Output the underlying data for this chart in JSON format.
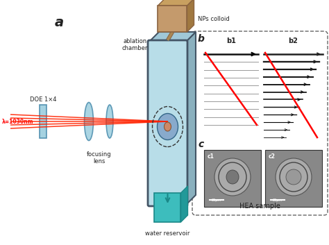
{
  "title_a": "a",
  "title_b": "b",
  "title_c": "c",
  "label_doe": "DOE 1×4",
  "label_lambda": "λ=1030nm",
  "label_focusing": "focusing\nlens",
  "label_ablation": "ablation\nchamber",
  "label_nps": "NPs colloid",
  "label_water": "water reservoir",
  "label_hea": "HEA sample",
  "label_b1": "b1",
  "label_b2": "b2",
  "label_c1": "c1",
  "label_c2": "c2",
  "bg_color": "#ffffff",
  "beam_color": "#ff2200",
  "lens_color": "#99ccdd",
  "lens_edge": "#4488aa",
  "chamber_face_color": "#b8dde8",
  "chamber_edge_color": "#445566",
  "colloid_color": "#c49a6c",
  "colloid_edge": "#8b6340",
  "reservoir_color": "#3dbdbd",
  "reservoir_edge": "#1a8888",
  "text_color": "#222222",
  "panel_edge": "#666666",
  "scale_bar_color": "#ffffff",
  "micro_bg": "#888888",
  "micro_spot": "#bbbbbb"
}
